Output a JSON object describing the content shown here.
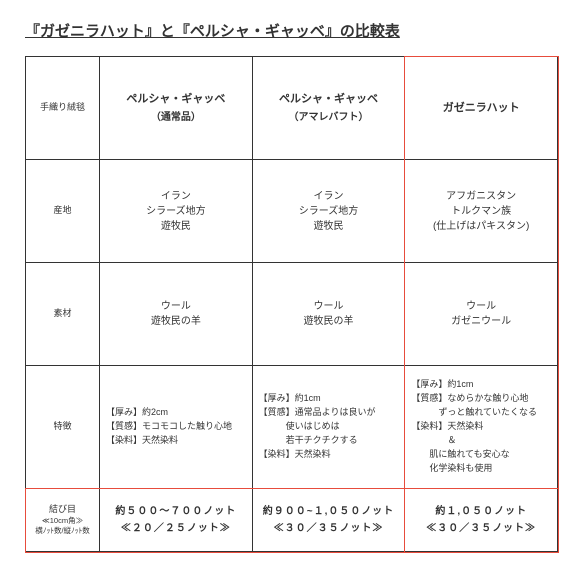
{
  "title": "『ガゼニラハット』と『ペルシャ・ギャッベ』の比較表",
  "headers": {
    "rowLabel": "手織り絨毯",
    "col1_name": "ペルシャ・ギャッベ",
    "col1_sub": "（通常品）",
    "col2_name": "ペルシャ・ギャッベ",
    "col2_sub": "（アマレバフト）",
    "col3_name": "ガゼニラハット"
  },
  "rows": {
    "origin": {
      "label": "産地",
      "c1": "イラン\nシラーズ地方\n遊牧民",
      "c2": "イラン\nシラーズ地方\n遊牧民",
      "c3": "アフガニスタン\nトルクマン族\n(仕上げはパキスタン)"
    },
    "material": {
      "label": "素材",
      "c1": "ウール\n遊牧民の羊",
      "c2": "ウール\n遊牧民の羊",
      "c3": "ウール\nガゼニウール"
    },
    "feature": {
      "label": "特徴",
      "c1": "【厚み】約2cm\n【質感】モコモコした触り心地\n【染料】天然染料",
      "c2": "【厚み】約1cm\n【質感】通常品よりは良いが\n　　　使いはじめは\n　　　若干チクチクする\n【染料】天然染料",
      "c3": "【厚み】約1cm\n【質感】なめらかな触り心地\n　　　ずっと触れていたくなる\n【染料】天然染料\n　　　　＆\n　　肌に触れても安心な\n　　化学染料も使用"
    },
    "knots": {
      "label": "結び目",
      "sub1": "≪10cm角≫",
      "sub2": "横ﾉｯﾄ数/縦ﾉｯﾄ数",
      "c1a": "約５００～７００ノット",
      "c1b": "≪２０／２５ノット≫",
      "c2a": "約９００~１,０５０ノット",
      "c2b": "≪３０／３５ノット≫",
      "c3a": "約１,０５０ノット",
      "c3b": "≪３０／３５ノット≫"
    }
  },
  "highlight": {
    "color": "#e74c3c"
  }
}
